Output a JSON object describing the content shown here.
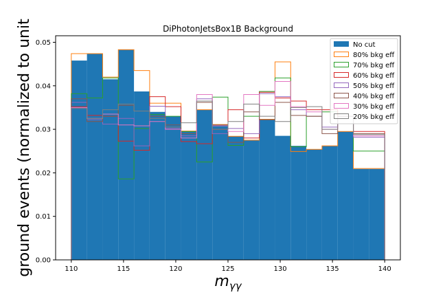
{
  "chart_data": {
    "type": "bar",
    "title": "DiPhotonJetsBox1B Background",
    "xlabel": "mγγ",
    "xlabel_base": "m",
    "xlabel_sub": "γγ",
    "ylabel": "ground events (normalized to unit",
    "xlim": [
      108.5,
      141.5
    ],
    "ylim": [
      0,
      0.0515
    ],
    "xticks": [
      110,
      115,
      120,
      125,
      130,
      135,
      140
    ],
    "xtick_labels": [
      "110",
      "115",
      "120",
      "125",
      "130",
      "135",
      "140"
    ],
    "yticks": [
      0,
      0.01,
      0.02,
      0.03,
      0.04,
      0.05
    ],
    "ytick_labels": [
      "0.00",
      "0.01",
      "0.02",
      "0.03",
      "0.04",
      "0.05"
    ],
    "bin_edges": [
      110,
      111.5,
      113,
      114.5,
      116,
      117.5,
      119,
      120.5,
      122,
      123.5,
      125,
      126.5,
      128,
      129.5,
      131,
      132.5,
      134,
      135.5,
      137,
      138.5,
      140
    ],
    "legend_position": "upper right",
    "series": [
      {
        "name": "No cut",
        "style": "filled",
        "color": "#1f77b4",
        "values": [
          0.0458,
          0.0474,
          0.0415,
          0.0483,
          0.0387,
          0.034,
          0.033,
          0.0296,
          0.0345,
          0.0311,
          0.0284,
          0.0275,
          0.0323,
          0.0285,
          0.0262,
          0.0254,
          0.0262,
          0.0295,
          0.0209,
          0.0209
        ]
      },
      {
        "name": "80% bkg eff",
        "style": "step",
        "color": "#ff7f0e",
        "values": [
          0.0474,
          0.0474,
          0.042,
          0.0483,
          0.0435,
          0.036,
          0.036,
          0.0296,
          0.0345,
          0.0311,
          0.0284,
          0.0275,
          0.0323,
          0.0455,
          0.0249,
          0.0254,
          0.0262,
          0.0295,
          0.021,
          0.021
        ]
      },
      {
        "name": "70% bkg eff",
        "style": "step",
        "color": "#2ca02c",
        "values": [
          0.0382,
          0.0372,
          0.0418,
          0.0186,
          0.0302,
          0.0334,
          0.033,
          0.0295,
          0.0225,
          0.0374,
          0.0263,
          0.033,
          0.0387,
          0.0418,
          0.026,
          0.033,
          0.034,
          0.033,
          0.025,
          0.025
        ]
      },
      {
        "name": "60% bkg eff",
        "style": "step",
        "color": "#d62728",
        "values": [
          0.0352,
          0.0332,
          0.033,
          0.0273,
          0.0252,
          0.0375,
          0.0352,
          0.0272,
          0.0267,
          0.03,
          0.0345,
          0.028,
          0.0385,
          0.0372,
          0.0365,
          0.0345,
          0.0345,
          0.033,
          0.0295,
          0.0295
        ]
      },
      {
        "name": "50% bkg eff",
        "style": "step",
        "color": "#9467bd",
        "values": [
          0.0362,
          0.0322,
          0.0312,
          0.0325,
          0.0262,
          0.0353,
          0.0302,
          0.0285,
          0.037,
          0.029,
          0.0302,
          0.029,
          0.0382,
          0.0375,
          0.0345,
          0.033,
          0.0305,
          0.033,
          0.0282,
          0.0282
        ]
      },
      {
        "name": "40% bkg eff",
        "style": "step",
        "color": "#8c564b",
        "values": [
          0.037,
          0.0318,
          0.033,
          0.0355,
          0.0342,
          0.033,
          0.031,
          0.029,
          0.0362,
          0.031,
          0.027,
          0.034,
          0.0322,
          0.0362,
          0.0332,
          0.033,
          0.029,
          0.033,
          0.029,
          0.029
        ]
      },
      {
        "name": "30% bkg eff",
        "style": "step",
        "color": "#e377c2",
        "values": [
          0.035,
          0.0325,
          0.0335,
          0.031,
          0.0308,
          0.0318,
          0.03,
          0.028,
          0.038,
          0.0308,
          0.0295,
          0.038,
          0.0355,
          0.041,
          0.0352,
          0.034,
          0.03,
          0.033,
          0.0285,
          0.0285
        ]
      },
      {
        "name": "20% bkg eff",
        "style": "step",
        "color": "#7f7f7f",
        "values": [
          0.0348,
          0.0325,
          0.0345,
          0.0358,
          0.0342,
          0.0325,
          0.0305,
          0.0315,
          0.0365,
          0.03,
          0.0318,
          0.0358,
          0.033,
          0.0318,
          0.035,
          0.0352,
          0.03,
          0.033,
          0.0288,
          0.0288
        ]
      }
    ]
  }
}
